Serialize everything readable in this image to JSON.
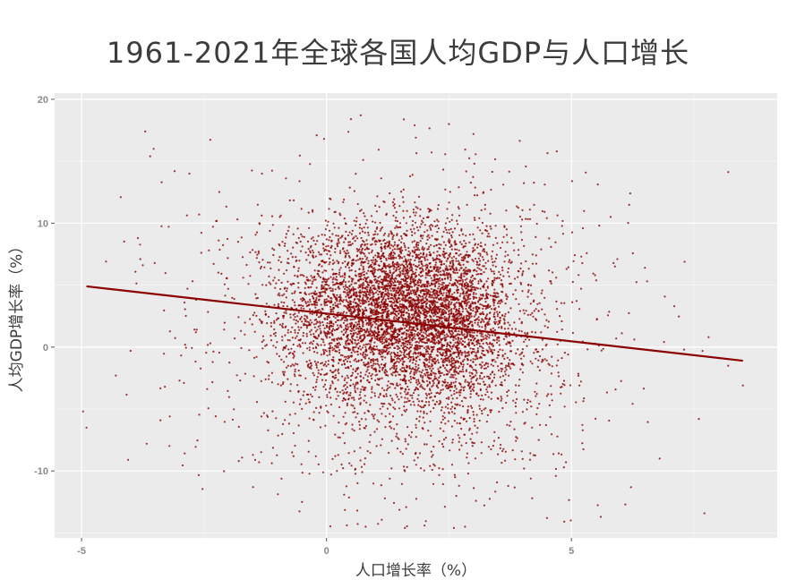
{
  "chart_data": {
    "type": "scatter",
    "title": "1961-2021年全球各国人均GDP与人口增长",
    "xlabel": "人口增长率（%）",
    "ylabel": "人均GDP增长率（%）",
    "xlim": [
      -5.55,
      9.2
    ],
    "ylim": [
      -15.4,
      20.5
    ],
    "x_ticks": [
      -5,
      0,
      5
    ],
    "y_ticks": [
      -10,
      0,
      10,
      20
    ],
    "grid": true,
    "legend": "none",
    "point_color": "#8b0000",
    "trend_line": {
      "color": "#8b0000",
      "points": [
        [
          -4.9,
          4.9
        ],
        [
          8.5,
          -1.1
        ]
      ]
    },
    "outlier_points": [
      [
        -4.9,
        -6.5
      ],
      [
        -4.5,
        6.9
      ],
      [
        -4.3,
        -2.3
      ],
      [
        -4.05,
        -9.1
      ],
      [
        -3.85,
        8.8
      ],
      [
        -3.75,
        6.6
      ],
      [
        -3.8,
        7.1
      ],
      [
        -3.7,
        17.4
      ],
      [
        -3.6,
        15.4
      ],
      [
        -3.2,
        -5.6
      ],
      [
        -3.1,
        14.2
      ],
      [
        -2.9,
        3.6
      ],
      [
        -2.8,
        14.0
      ],
      [
        -2.6,
        10.7
      ],
      [
        -4.2,
        12.1
      ],
      [
        -3.0,
        -2.7
      ],
      [
        -2.4,
        7.8
      ],
      [
        -2.2,
        8.6
      ],
      [
        -4.0,
        -0.3
      ],
      [
        -3.3,
        -3.2
      ],
      [
        0.7,
        18.7
      ],
      [
        0.5,
        18.4
      ],
      [
        2.5,
        18.0
      ],
      [
        1.8,
        17.9
      ],
      [
        -0.2,
        17.1
      ],
      [
        -0.05,
        16.8
      ],
      [
        3.0,
        17.2
      ],
      [
        4.7,
        15.8
      ],
      [
        6.2,
        12.4
      ],
      [
        5.8,
        10.5
      ],
      [
        7.1,
        3.3
      ],
      [
        7.8,
        0.8
      ],
      [
        8.2,
        -1.5
      ],
      [
        8.5,
        -3.1
      ],
      [
        7.6,
        -5.8
      ],
      [
        6.8,
        -9.0
      ],
      [
        6.1,
        -12.7
      ],
      [
        5.6,
        -13.7
      ],
      [
        4.5,
        -13.8
      ],
      [
        2.6,
        -14.6
      ],
      [
        2.0,
        -14.4
      ],
      [
        0.8,
        -14.5
      ],
      [
        1.6,
        -14.6
      ],
      [
        -1.5,
        -11.3
      ],
      [
        5.2,
        7.3
      ],
      [
        4.2,
        -12.2
      ],
      [
        -0.5,
        -12.5
      ],
      [
        6.5,
        6.4
      ],
      [
        7.3,
        -0.2
      ],
      [
        -1.7,
        5.6
      ]
    ],
    "clusters": [
      {
        "cx": 1.2,
        "cy": 3.2,
        "sx": 1.0,
        "sy": 3.2,
        "n": 3000
      },
      {
        "cx": 2.6,
        "cy": 2.0,
        "sx": 0.55,
        "sy": 3.0,
        "n": 1200
      },
      {
        "cx": 1.8,
        "cy": 1.2,
        "sx": 1.6,
        "sy": 5.6,
        "n": 2100
      },
      {
        "cx": 1.4,
        "cy": 0.9,
        "sx": 2.4,
        "sy": 6.8,
        "n": 500
      }
    ]
  }
}
